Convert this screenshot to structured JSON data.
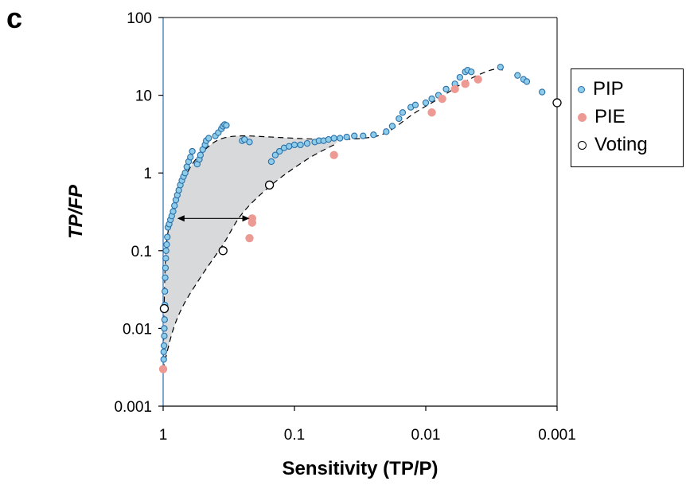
{
  "panel_label": "c",
  "chart_data": {
    "type": "scatter",
    "xlabel": "Sensitivity (TP/P)",
    "ylabel": "TP/FP",
    "x_scale": "log",
    "x_reversed": true,
    "y_scale": "log",
    "xlim": [
      1,
      0.001
    ],
    "ylim": [
      0.001,
      100
    ],
    "x_ticks": [
      "1",
      "0.1",
      "0.01",
      "0.001"
    ],
    "y_ticks": [
      "0.001",
      "0.01",
      "0.1",
      "1",
      "10",
      "100"
    ],
    "grid": false,
    "legend_position": "right",
    "colors": {
      "PIP": "#8ecde9",
      "PIP_edge": "#2a6fa8",
      "PIE": "#ee9a94",
      "Voting": "#ffffff",
      "shade": "#d8d9db"
    },
    "series": [
      {
        "name": "PIP",
        "marker": "circle-small-blue",
        "points": [
          [
            0.99,
            0.004
          ],
          [
            0.99,
            0.005
          ],
          [
            0.985,
            0.006
          ],
          [
            0.98,
            0.008
          ],
          [
            0.98,
            0.01
          ],
          [
            0.975,
            0.013
          ],
          [
            0.97,
            0.02
          ],
          [
            0.97,
            0.03
          ],
          [
            0.965,
            0.045
          ],
          [
            0.96,
            0.06
          ],
          [
            0.955,
            0.08
          ],
          [
            0.95,
            0.1
          ],
          [
            0.94,
            0.12
          ],
          [
            0.93,
            0.15
          ],
          [
            0.92,
            0.2
          ],
          [
            0.9,
            0.22
          ],
          [
            0.88,
            0.25
          ],
          [
            0.86,
            0.28
          ],
          [
            0.84,
            0.32
          ],
          [
            0.82,
            0.38
          ],
          [
            0.8,
            0.45
          ],
          [
            0.78,
            0.52
          ],
          [
            0.76,
            0.6
          ],
          [
            0.74,
            0.7
          ],
          [
            0.72,
            0.8
          ],
          [
            0.7,
            0.9
          ],
          [
            0.68,
            1.0
          ],
          [
            0.66,
            1.2
          ],
          [
            0.64,
            1.4
          ],
          [
            0.62,
            1.6
          ],
          [
            0.6,
            1.9
          ],
          [
            0.55,
            1.3
          ],
          [
            0.53,
            1.5
          ],
          [
            0.52,
            1.7
          ],
          [
            0.5,
            2.0
          ],
          [
            0.48,
            2.3
          ],
          [
            0.47,
            2.6
          ],
          [
            0.45,
            2.8
          ],
          [
            0.4,
            3.0
          ],
          [
            0.38,
            3.3
          ],
          [
            0.36,
            3.7
          ],
          [
            0.35,
            4.0
          ],
          [
            0.34,
            4.2
          ],
          [
            0.33,
            4.1
          ],
          [
            0.25,
            2.6
          ],
          [
            0.24,
            2.7
          ],
          [
            0.22,
            2.5
          ],
          [
            0.15,
            1.4
          ],
          [
            0.14,
            1.7
          ],
          [
            0.13,
            1.9
          ],
          [
            0.12,
            2.1
          ],
          [
            0.11,
            2.2
          ],
          [
            0.1,
            2.3
          ],
          [
            0.09,
            2.3
          ],
          [
            0.08,
            2.4
          ],
          [
            0.07,
            2.5
          ],
          [
            0.065,
            2.6
          ],
          [
            0.06,
            2.6
          ],
          [
            0.055,
            2.7
          ],
          [
            0.05,
            2.8
          ],
          [
            0.045,
            2.8
          ],
          [
            0.04,
            2.9
          ],
          [
            0.035,
            3.0
          ],
          [
            0.03,
            3.0
          ],
          [
            0.025,
            3.1
          ],
          [
            0.02,
            3.4
          ],
          [
            0.018,
            4.0
          ],
          [
            0.016,
            5.0
          ],
          [
            0.015,
            6.0
          ],
          [
            0.013,
            7.0
          ],
          [
            0.012,
            7.5
          ],
          [
            0.01,
            8.0
          ],
          [
            0.009,
            9.0
          ],
          [
            0.008,
            10.0
          ],
          [
            0.007,
            12.0
          ],
          [
            0.006,
            14.0
          ],
          [
            0.0055,
            17.0
          ],
          [
            0.005,
            20.0
          ],
          [
            0.0048,
            21.0
          ],
          [
            0.0045,
            20.0
          ],
          [
            0.0027,
            23.0
          ],
          [
            0.002,
            18.0
          ],
          [
            0.0018,
            16.0
          ],
          [
            0.0017,
            15.0
          ],
          [
            0.0013,
            11.0
          ]
        ]
      },
      {
        "name": "PIE",
        "marker": "circle-pink",
        "points": [
          [
            1.0,
            0.003
          ],
          [
            0.22,
            0.145
          ],
          [
            0.21,
            0.26
          ],
          [
            0.21,
            0.23
          ],
          [
            0.05,
            1.7
          ],
          [
            0.009,
            6.0
          ],
          [
            0.0075,
            9.0
          ],
          [
            0.006,
            12.0
          ],
          [
            0.005,
            14.0
          ],
          [
            0.004,
            16.0
          ]
        ]
      },
      {
        "name": "Voting",
        "marker": "circle-open",
        "points": [
          [
            0.98,
            0.018
          ],
          [
            0.35,
            0.1
          ],
          [
            0.155,
            0.7
          ],
          [
            0.001,
            8.0
          ]
        ]
      }
    ],
    "annotations": [
      {
        "type": "double-arrow",
        "from": [
          0.78,
          0.26
        ],
        "to": [
          0.22,
          0.26
        ]
      }
    ],
    "envelope": {
      "upper": [
        [
          1.0,
          0.003
        ],
        [
          0.97,
          0.05
        ],
        [
          0.93,
          0.15
        ],
        [
          0.85,
          0.3
        ],
        [
          0.75,
          0.6
        ],
        [
          0.6,
          1.3
        ],
        [
          0.45,
          2.2
        ],
        [
          0.35,
          2.8
        ],
        [
          0.25,
          3.0
        ],
        [
          0.15,
          2.9
        ],
        [
          0.08,
          2.75
        ],
        [
          0.05,
          2.7
        ],
        [
          0.03,
          2.8
        ],
        [
          0.02,
          3.3
        ],
        [
          0.012,
          6.0
        ],
        [
          0.008,
          9.0
        ],
        [
          0.005,
          15.0
        ],
        [
          0.0035,
          20.0
        ],
        [
          0.0028,
          22.0
        ],
        [
          0.0026,
          21.0
        ]
      ],
      "lower": [
        [
          0.05,
          2.3
        ],
        [
          0.08,
          1.5
        ],
        [
          0.15,
          0.7
        ],
        [
          0.25,
          0.3
        ],
        [
          0.35,
          0.12
        ],
        [
          0.5,
          0.05
        ],
        [
          0.7,
          0.02
        ],
        [
          0.85,
          0.009
        ],
        [
          1.0,
          0.003
        ]
      ]
    },
    "legend": {
      "PIP": "PIP",
      "PIE": "PIE",
      "Voting": "Voting"
    }
  }
}
